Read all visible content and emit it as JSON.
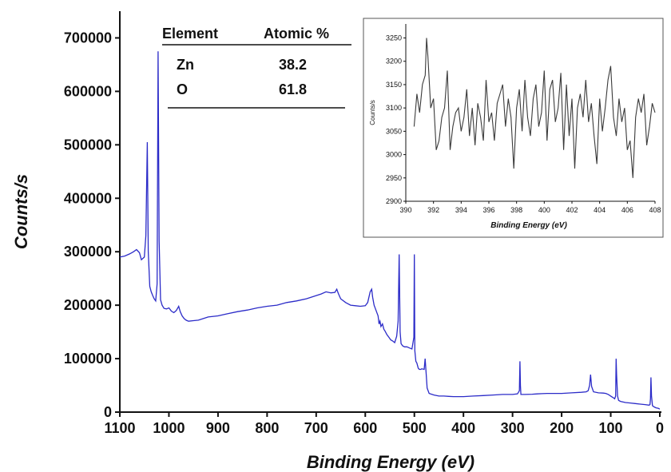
{
  "chart_data": [
    {
      "type": "line",
      "title": "",
      "xlabel": "Binding Energy (eV)",
      "ylabel": "Counts/s",
      "xlim": [
        1100,
        0
      ],
      "ylim": [
        0,
        750000
      ],
      "x_ticks": [
        1100,
        1000,
        900,
        800,
        700,
        600,
        500,
        400,
        300,
        200,
        100,
        0
      ],
      "y_ticks": [
        0,
        100000,
        200000,
        300000,
        400000,
        500000,
        600000,
        700000
      ],
      "x_tick_labels": [
        "1100",
        "1000",
        "900",
        "800",
        "700",
        "600",
        "500",
        "400",
        "300",
        "200",
        "100",
        "0"
      ],
      "y_tick_labels": [
        "0",
        "100000",
        "200000",
        "300000",
        "400000",
        "500000",
        "600000",
        "700000"
      ],
      "grid": false,
      "line_color": "#2b2bc8",
      "series": [
        {
          "x": [
            1100,
            1090,
            1080,
            1072,
            1066,
            1060,
            1056,
            1050,
            1047,
            1044,
            1042,
            1039,
            1036,
            1033,
            1030,
            1027,
            1024,
            1022,
            1020,
            1017,
            1014,
            1010,
            1005,
            1000,
            995,
            990,
            985,
            980,
            977,
            973,
            969,
            965,
            960,
            950,
            940,
            930,
            920,
            900,
            880,
            860,
            840,
            820,
            800,
            780,
            760,
            740,
            720,
            700,
            690,
            680,
            670,
            662,
            658,
            655,
            650,
            640,
            630,
            620,
            610,
            600,
            595,
            590,
            587,
            585,
            582,
            578,
            574,
            572,
            570,
            568,
            565,
            562,
            560,
            556,
            552,
            548,
            544,
            540,
            536,
            533,
            531,
            529,
            527,
            524,
            520,
            515,
            510,
            505,
            501,
            500,
            499,
            497,
            495,
            492,
            490,
            487,
            485,
            480,
            478,
            476,
            474,
            470,
            460,
            450,
            440,
            430,
            420,
            400,
            380,
            360,
            340,
            320,
            300,
            290,
            286,
            285,
            284,
            283,
            281,
            275,
            260,
            250,
            240,
            230,
            220,
            200,
            180,
            160,
            150,
            146,
            143,
            141,
            139,
            135,
            125,
            115,
            110,
            105,
            100,
            95,
            92,
            90,
            89,
            88,
            86,
            84,
            80,
            70,
            60,
            50,
            40,
            30,
            22,
            20,
            19,
            18,
            17,
            15,
            12,
            10,
            8,
            5,
            3,
            2,
            1,
            0
          ],
          "y": [
            290000,
            292000,
            296000,
            300000,
            304000,
            298000,
            285000,
            290000,
            330000,
            505000,
            300000,
            235000,
            225000,
            218000,
            212000,
            208000,
            240000,
            675000,
            320000,
            210000,
            200000,
            194000,
            193000,
            195000,
            189000,
            186000,
            190000,
            198000,
            188000,
            180000,
            175000,
            172000,
            170000,
            171000,
            172000,
            175000,
            178000,
            180000,
            184000,
            188000,
            191000,
            195000,
            198000,
            200000,
            205000,
            208000,
            212000,
            218000,
            221000,
            225000,
            223000,
            224000,
            230000,
            222000,
            212000,
            205000,
            200000,
            199000,
            198000,
            199000,
            205000,
            225000,
            230000,
            215000,
            200000,
            190000,
            180000,
            165000,
            170000,
            160000,
            165000,
            155000,
            152000,
            145000,
            140000,
            135000,
            133000,
            130000,
            142000,
            170000,
            295000,
            150000,
            128000,
            124000,
            122000,
            122000,
            120000,
            118000,
            140000,
            295000,
            115000,
            95000,
            92000,
            82000,
            80000,
            80000,
            81000,
            80000,
            100000,
            72000,
            45000,
            35000,
            32000,
            30000,
            30000,
            29500,
            29000,
            29000,
            30000,
            31000,
            32000,
            33000,
            33000,
            34000,
            40000,
            95000,
            50000,
            33000,
            33000,
            33000,
            33500,
            34000,
            34500,
            35000,
            35000,
            35000,
            36000,
            37000,
            38000,
            40000,
            50000,
            70000,
            48000,
            38000,
            36000,
            35500,
            35000,
            33000,
            30000,
            27000,
            25000,
            30000,
            100000,
            70000,
            30000,
            22000,
            20000,
            18000,
            17000,
            16000,
            15000,
            14000,
            13000,
            14000,
            25000,
            65000,
            30000,
            12000,
            10000,
            9000,
            8000,
            7500,
            7000,
            6500,
            6000,
            6000
          ]
        }
      ],
      "table": {
        "headers": [
          "Element",
          "Atomic %"
        ],
        "rows": [
          [
            "Zn",
            "38.2"
          ],
          [
            "O",
            "61.8"
          ]
        ]
      }
    },
    {
      "type": "line",
      "title": "",
      "xlabel": "Binding Energy (eV)",
      "ylabel": "Counts/s",
      "xlim": [
        390,
        408
      ],
      "ylim": [
        2900,
        3280
      ],
      "x_ticks": [
        390,
        392,
        394,
        396,
        398,
        400,
        402,
        404,
        406,
        408
      ],
      "y_ticks": [
        2900,
        2950,
        3000,
        3050,
        3100,
        3150,
        3200,
        3250
      ],
      "x_tick_labels": [
        "390",
        "392",
        "394",
        "396",
        "398",
        "400",
        "402",
        "404",
        "406",
        "408"
      ],
      "y_tick_labels": [
        "2900",
        "2950",
        "3000",
        "3050",
        "3100",
        "3150",
        "3200",
        "3250"
      ],
      "grid": false,
      "line_color": "#3a3a3a",
      "series": [
        {
          "x": [
            390.6,
            390.8,
            391.0,
            391.2,
            391.4,
            391.5,
            391.6,
            391.8,
            392.0,
            392.2,
            392.4,
            392.6,
            392.8,
            393.0,
            393.2,
            393.4,
            393.6,
            393.8,
            394.0,
            394.2,
            394.4,
            394.6,
            394.8,
            395.0,
            395.2,
            395.4,
            395.6,
            395.8,
            396.0,
            396.2,
            396.4,
            396.6,
            396.8,
            397.0,
            397.2,
            397.4,
            397.6,
            397.8,
            398.0,
            398.2,
            398.4,
            398.6,
            398.8,
            399.0,
            399.2,
            399.4,
            399.6,
            399.8,
            400.0,
            400.2,
            400.4,
            400.6,
            400.8,
            401.0,
            401.2,
            401.4,
            401.6,
            401.8,
            402.0,
            402.2,
            402.4,
            402.6,
            402.8,
            403.0,
            403.2,
            403.4,
            403.6,
            403.8,
            404.0,
            404.2,
            404.4,
            404.6,
            404.8,
            405.0,
            405.2,
            405.4,
            405.6,
            405.8,
            406.0,
            406.2,
            406.4,
            406.6,
            406.8,
            407.0,
            407.2,
            407.4,
            407.6,
            407.8,
            408.0
          ],
          "y": [
            3060,
            3130,
            3090,
            3150,
            3170,
            3250,
            3210,
            3100,
            3120,
            3010,
            3030,
            3080,
            3100,
            3180,
            3010,
            3060,
            3090,
            3100,
            3050,
            3080,
            3140,
            3040,
            3100,
            3020,
            3110,
            3080,
            3030,
            3160,
            3070,
            3090,
            3030,
            3110,
            3130,
            3150,
            3060,
            3120,
            3080,
            2970,
            3100,
            3140,
            3050,
            3160,
            3080,
            3040,
            3120,
            3150,
            3060,
            3090,
            3180,
            3030,
            3140,
            3160,
            3070,
            3100,
            3175,
            3010,
            3150,
            3040,
            3120,
            2970,
            3100,
            3130,
            3080,
            3160,
            3070,
            3110,
            3040,
            2980,
            3120,
            3050,
            3100,
            3160,
            3190,
            3080,
            3040,
            3120,
            3070,
            3100,
            3010,
            3030,
            2950,
            3080,
            3120,
            3090,
            3130,
            3020,
            3060,
            3110,
            3090
          ]
        }
      ]
    }
  ]
}
